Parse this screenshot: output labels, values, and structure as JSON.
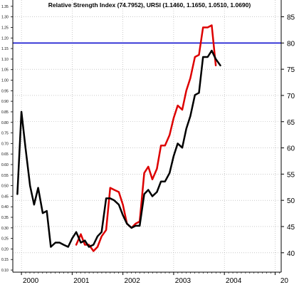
{
  "chart_data": {
    "type": "line",
    "title": "Relative Strength Index (74.7952), URSI (1.1460, 1.1650, 1.0510, 1.0690)",
    "xlabel": "",
    "ylabel": "",
    "x_ticks": [
      "2000",
      "2001",
      "2002",
      "2003",
      "2004",
      "20"
    ],
    "x_range": [
      1999.83,
      2005.12
    ],
    "grid": true,
    "left_axis": {
      "ylim": [
        0.09,
        1.38
      ],
      "ticks": [
        "0.10",
        "0.15",
        "0.20",
        "0.25",
        "0.30",
        "0.35",
        "0.40",
        "0.45",
        "0.50",
        "0.55",
        "0.60",
        "0.65",
        "0.70",
        "0.75",
        "0.80",
        "0.85",
        "0.90",
        "0.95",
        "1.00",
        "1.05",
        "1.10",
        "1.15",
        "1.20",
        "1.25",
        "1.30",
        "1.35"
      ]
    },
    "right_axis": {
      "ylim": [
        36.3,
        88.2
      ],
      "ticks": [
        "40",
        "45",
        "50",
        "55",
        "60",
        "65",
        "70",
        "75",
        "80",
        "85"
      ]
    },
    "reference_line": {
      "axis": "right",
      "value": 80,
      "color": "#0000cc"
    },
    "series": [
      {
        "axis": "left",
        "color": "#000000",
        "points": [
          [
            1999.92,
            0.46
          ],
          [
            2000.0,
            0.85
          ],
          [
            2000.08,
            0.68
          ],
          [
            2000.17,
            0.5
          ],
          [
            2000.25,
            0.41
          ],
          [
            2000.33,
            0.49
          ],
          [
            2000.42,
            0.37
          ],
          [
            2000.5,
            0.38
          ],
          [
            2000.58,
            0.21
          ],
          [
            2000.67,
            0.23
          ],
          [
            2000.75,
            0.23
          ],
          [
            2000.83,
            0.22
          ],
          [
            2000.92,
            0.21
          ],
          [
            2001.0,
            0.25
          ],
          [
            2001.08,
            0.28
          ],
          [
            2001.17,
            0.23
          ],
          [
            2001.25,
            0.24
          ],
          [
            2001.33,
            0.21
          ],
          [
            2001.42,
            0.22
          ],
          [
            2001.5,
            0.26
          ],
          [
            2001.58,
            0.28
          ],
          [
            2001.67,
            0.44
          ],
          [
            2001.75,
            0.44
          ],
          [
            2001.83,
            0.43
          ],
          [
            2001.92,
            0.41
          ],
          [
            2002.0,
            0.36
          ],
          [
            2002.08,
            0.32
          ],
          [
            2002.17,
            0.3
          ],
          [
            2002.25,
            0.31
          ],
          [
            2002.33,
            0.31
          ],
          [
            2002.42,
            0.46
          ],
          [
            2002.5,
            0.48
          ],
          [
            2002.58,
            0.45
          ],
          [
            2002.67,
            0.47
          ],
          [
            2002.75,
            0.52
          ],
          [
            2002.83,
            0.52
          ],
          [
            2002.92,
            0.56
          ],
          [
            2003.0,
            0.64
          ],
          [
            2003.08,
            0.7
          ],
          [
            2003.17,
            0.68
          ],
          [
            2003.25,
            0.77
          ],
          [
            2003.33,
            0.83
          ],
          [
            2003.42,
            0.93
          ],
          [
            2003.5,
            0.94
          ],
          [
            2003.58,
            1.11
          ],
          [
            2003.67,
            1.11
          ],
          [
            2003.75,
            1.14
          ],
          [
            2003.83,
            1.1
          ],
          [
            2003.92,
            1.07
          ]
        ]
      },
      {
        "axis": "left",
        "color": "#dd0000",
        "points": [
          [
            2001.08,
            0.22
          ],
          [
            2001.17,
            0.27
          ],
          [
            2001.25,
            0.22
          ],
          [
            2001.33,
            0.22
          ],
          [
            2001.42,
            0.19
          ],
          [
            2001.5,
            0.21
          ],
          [
            2001.58,
            0.26
          ],
          [
            2001.67,
            0.29
          ],
          [
            2001.75,
            0.49
          ],
          [
            2001.83,
            0.48
          ],
          [
            2001.92,
            0.47
          ],
          [
            2002.0,
            0.41
          ],
          [
            2002.08,
            0.32
          ],
          [
            2002.17,
            0.3
          ],
          [
            2002.25,
            0.32
          ],
          [
            2002.33,
            0.33
          ],
          [
            2002.42,
            0.56
          ],
          [
            2002.5,
            0.59
          ],
          [
            2002.58,
            0.53
          ],
          [
            2002.67,
            0.58
          ],
          [
            2002.75,
            0.69
          ],
          [
            2002.83,
            0.69
          ],
          [
            2002.92,
            0.74
          ],
          [
            2003.0,
            0.82
          ],
          [
            2003.08,
            0.88
          ],
          [
            2003.17,
            0.86
          ],
          [
            2003.25,
            0.95
          ],
          [
            2003.33,
            1.01
          ],
          [
            2003.42,
            1.11
          ],
          [
            2003.5,
            1.12
          ],
          [
            2003.58,
            1.25
          ],
          [
            2003.67,
            1.25
          ],
          [
            2003.75,
            1.26
          ],
          [
            2003.83,
            1.07
          ]
        ]
      }
    ]
  }
}
